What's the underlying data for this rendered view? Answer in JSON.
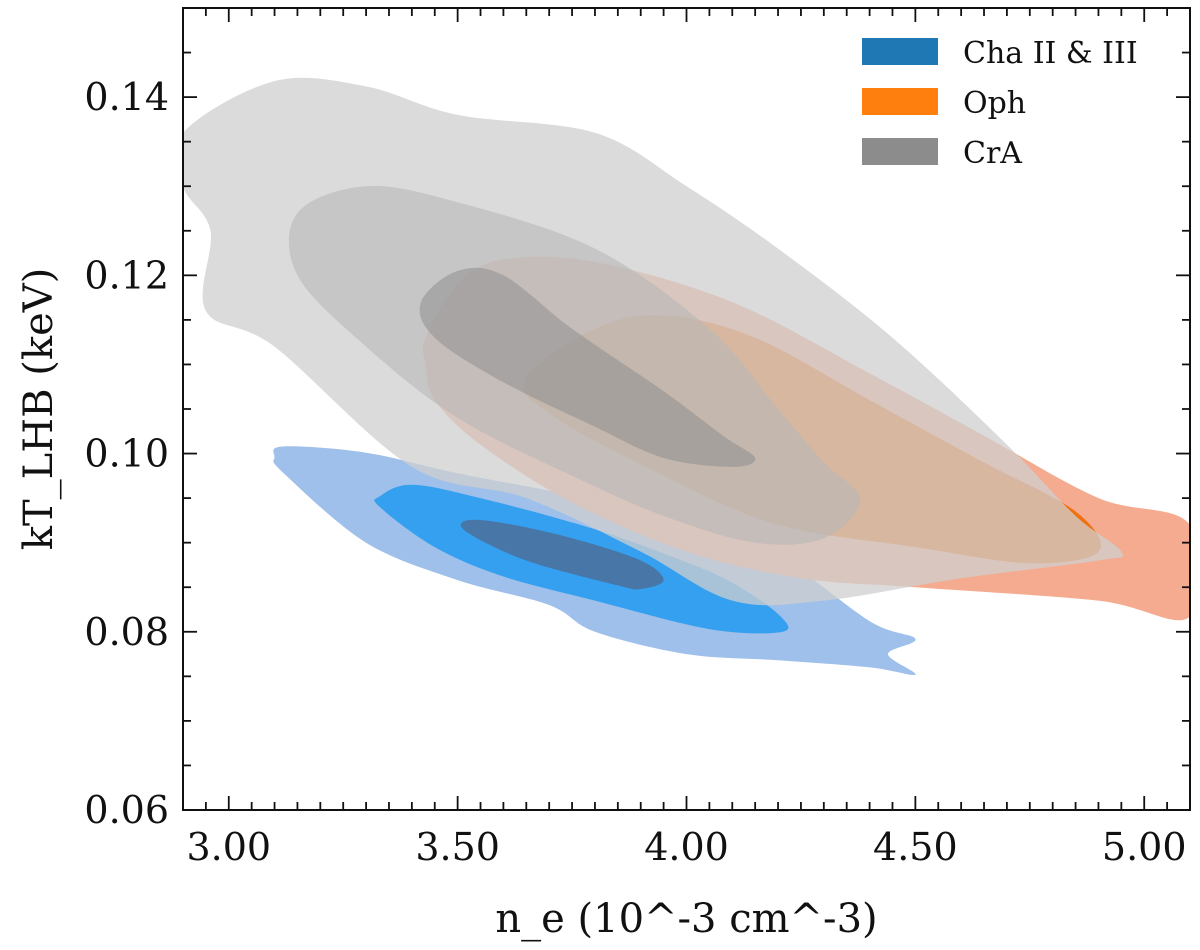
{
  "chart_data": {
    "type": "contour",
    "xlabel": "n_e (10^-3 cm^-3)",
    "ylabel": "kT_LHB (keV)",
    "xlim": [
      2.9,
      5.1
    ],
    "ylim": [
      0.06,
      0.15
    ],
    "xticks": [
      "3.00",
      "3.50",
      "4.00",
      "4.50",
      "5.00"
    ],
    "yticks": [
      "0.06",
      "0.08",
      "0.10",
      "0.12",
      "0.14"
    ],
    "legend_position": "top-right",
    "series": [
      {
        "name": "Cha II & III",
        "color": "#1f77b4",
        "levels": [
          {
            "fill": "#9ec0ea",
            "points": [
              [
                3.1,
                0.0996
              ],
              [
                3.12,
                0.1008
              ],
              [
                3.3,
                0.1001
              ],
              [
                3.5,
                0.0978
              ],
              [
                3.8,
                0.0948
              ],
              [
                4.1,
                0.0912
              ],
              [
                4.2,
                0.0888
              ],
              [
                4.4,
                0.0812
              ],
              [
                4.5,
                0.0792
              ],
              [
                4.44,
                0.0775
              ],
              [
                4.5,
                0.0752
              ],
              [
                4.4,
                0.076
              ],
              [
                4.2,
                0.0768
              ],
              [
                4.0,
                0.0775
              ],
              [
                3.8,
                0.08
              ],
              [
                3.7,
                0.083
              ],
              [
                3.5,
                0.0858
              ],
              [
                3.3,
                0.09
              ],
              [
                3.12,
                0.0978
              ]
            ]
          },
          {
            "fill": "#35a0f0",
            "points": [
              [
                3.33,
                0.0952
              ],
              [
                3.4,
                0.0965
              ],
              [
                3.55,
                0.095
              ],
              [
                3.8,
                0.0915
              ],
              [
                4.0,
                0.0878
              ],
              [
                4.1,
                0.0855
              ],
              [
                4.2,
                0.082
              ],
              [
                4.21,
                0.08
              ],
              [
                4.05,
                0.0803
              ],
              [
                3.8,
                0.0835
              ],
              [
                3.6,
                0.0862
              ],
              [
                3.45,
                0.0895
              ],
              [
                3.33,
                0.094
              ]
            ]
          },
          {
            "fill": "#4a6e9a",
            "fill_opacity": 0.85,
            "points": [
              [
                3.52,
                0.0925
              ],
              [
                3.6,
                0.0922
              ],
              [
                3.75,
                0.0905
              ],
              [
                3.9,
                0.088
              ],
              [
                3.95,
                0.0858
              ],
              [
                3.9,
                0.0848
              ],
              [
                3.85,
                0.0852
              ],
              [
                3.65,
                0.088
              ],
              [
                3.52,
                0.0912
              ]
            ]
          }
        ]
      },
      {
        "name": "Oph",
        "color": "#ff7f0e",
        "levels": [
          {
            "fill": "#f5ab90",
            "points": [
              [
                3.43,
                0.113
              ],
              [
                3.5,
                0.119
              ],
              [
                3.6,
                0.1218
              ],
              [
                3.8,
                0.1215
              ],
              [
                4.1,
                0.117
              ],
              [
                4.4,
                0.109
              ],
              [
                4.65,
                0.102
              ],
              [
                4.9,
                0.095
              ],
              [
                5.1,
                0.092
              ],
              [
                5.1,
                0.0817
              ],
              [
                4.9,
                0.0835
              ],
              [
                4.5,
                0.085
              ],
              [
                4.25,
                0.086
              ],
              [
                4.0,
                0.089
              ],
              [
                3.75,
                0.0945
              ],
              [
                3.55,
                0.101
              ],
              [
                3.45,
                0.106
              ],
              [
                3.43,
                0.11
              ]
            ]
          },
          {
            "fill": "#f07010",
            "points": [
              [
                3.65,
                0.1085
              ],
              [
                3.8,
                0.114
              ],
              [
                3.95,
                0.1155
              ],
              [
                4.15,
                0.113
              ],
              [
                4.4,
                0.106
              ],
              [
                4.65,
                0.099
              ],
              [
                4.85,
                0.0935
              ],
              [
                4.9,
                0.089
              ],
              [
                4.75,
                0.0877
              ],
              [
                4.5,
                0.0895
              ],
              [
                4.2,
                0.092
              ],
              [
                3.95,
                0.0975
              ],
              [
                3.7,
                0.1045
              ]
            ]
          },
          {
            "fill": "#f07010",
            "fill_opacity": 0.85,
            "points": [
              [
                4.0,
                0.1045
              ],
              [
                4.1,
                0.1065
              ],
              [
                4.25,
                0.106
              ],
              [
                4.45,
                0.102
              ],
              [
                4.65,
                0.096
              ],
              [
                4.6,
                0.0935
              ],
              [
                4.4,
                0.0945
              ],
              [
                4.2,
                0.0975
              ],
              [
                4.0,
                0.102
              ]
            ]
          }
        ]
      },
      {
        "name": "CrA",
        "color": "#8c8c8c",
        "levels": [
          {
            "fill": "#cfcfcf",
            "fill_opacity": 0.75,
            "points": [
              [
                2.9,
                0.136
              ],
              [
                3.1,
                0.1418
              ],
              [
                3.3,
                0.1412
              ],
              [
                3.5,
                0.138
              ],
              [
                3.8,
                0.136
              ],
              [
                4.0,
                0.13
              ],
              [
                4.2,
                0.123
              ],
              [
                4.45,
                0.113
              ],
              [
                4.7,
                0.101
              ],
              [
                4.85,
                0.093
              ],
              [
                4.95,
                0.089
              ],
              [
                4.9,
                0.088
              ],
              [
                4.6,
                0.086
              ],
              [
                4.3,
                0.0835
              ],
              [
                4.1,
                0.0835
              ],
              [
                3.9,
                0.089
              ],
              [
                3.65,
                0.095
              ],
              [
                3.4,
                0.0985
              ],
              [
                3.1,
                0.112
              ],
              [
                2.95,
                0.116
              ],
              [
                2.96,
                0.125
              ],
              [
                2.9,
                0.13
              ]
            ]
          },
          {
            "fill": "#b8b8b8",
            "fill_opacity": 0.6,
            "points": [
              [
                3.15,
                0.127
              ],
              [
                3.3,
                0.13
              ],
              [
                3.5,
                0.1282
              ],
              [
                3.8,
                0.123
              ],
              [
                4.05,
                0.114
              ],
              [
                4.2,
                0.105
              ],
              [
                4.3,
                0.099
              ],
              [
                4.38,
                0.0948
              ],
              [
                4.3,
                0.0905
              ],
              [
                4.15,
                0.09
              ],
              [
                3.95,
                0.093
              ],
              [
                3.75,
                0.0975
              ],
              [
                3.5,
                0.104
              ],
              [
                3.3,
                0.112
              ],
              [
                3.15,
                0.12
              ]
            ]
          },
          {
            "fill": "#8f8f8f",
            "fill_opacity": 0.55,
            "points": [
              [
                3.42,
                0.117
              ],
              [
                3.5,
                0.1205
              ],
              [
                3.6,
                0.12
              ],
              [
                3.75,
                0.114
              ],
              [
                3.95,
                0.107
              ],
              [
                4.08,
                0.102
              ],
              [
                4.15,
                0.0995
              ],
              [
                4.1,
                0.0985
              ],
              [
                3.95,
                0.0995
              ],
              [
                3.8,
                0.103
              ],
              [
                3.6,
                0.108
              ],
              [
                3.45,
                0.113
              ]
            ]
          }
        ]
      }
    ]
  }
}
